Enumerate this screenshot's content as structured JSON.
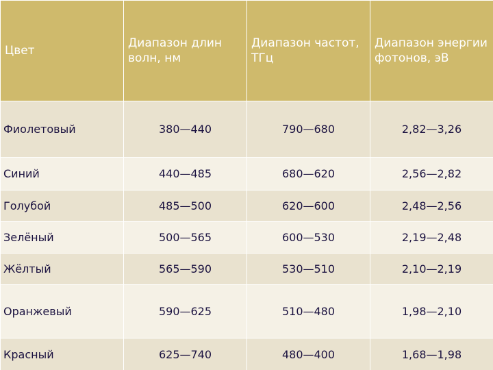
{
  "colors": {
    "header_bg": "#cfba6c",
    "row_odd_bg": "#e9e2cf",
    "row_even_bg": "#f5f1e6",
    "text": "#1b1240",
    "header_text": "#ffffff"
  },
  "headers": [
    "Цвет",
    "Диапазон длин волн, нм",
    "Диапазон частот, ТГц",
    "Диапазон энергии фотонов, эВ"
  ],
  "rows": [
    {
      "color": "Фиолетовый",
      "wavelength": "380—440",
      "frequency": "790—680",
      "energy": "2,82—3,26"
    },
    {
      "color": "Синий",
      "wavelength": "440—485",
      "frequency": "680—620",
      "energy": "2,56—2,82"
    },
    {
      "color": "Голубой",
      "wavelength": "485—500",
      "frequency": "620—600",
      "energy": "2,48—2,56"
    },
    {
      "color": "Зелёный",
      "wavelength": "500—565",
      "frequency": "600—530",
      "energy": "2,19—2,48"
    },
    {
      "color": "Жёлтый",
      "wavelength": "565—590",
      "frequency": "530—510",
      "energy": "2,10—2,19"
    },
    {
      "color": "Оранжевый",
      "wavelength": "590—625",
      "frequency": "510—480",
      "energy": "1,98—2,10"
    },
    {
      "color": "Красный",
      "wavelength": "625—740",
      "frequency": "480—400",
      "energy": "1,68—1,98"
    }
  ]
}
